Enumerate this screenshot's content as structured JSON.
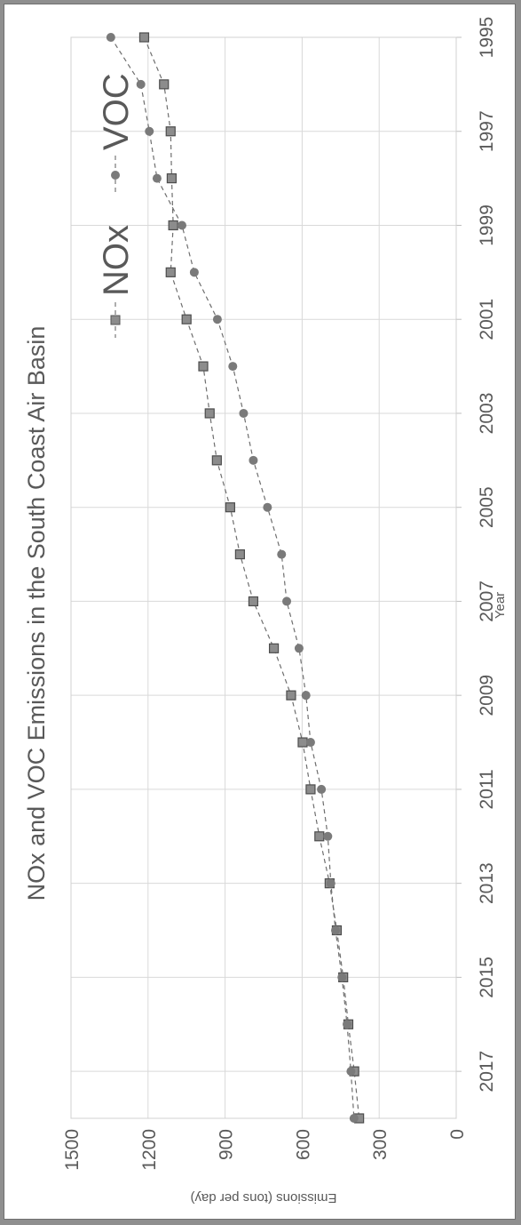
{
  "chart_data": {
    "type": "line",
    "title": "NOx and VOC Emissions in the South Coast Air Basin",
    "xlabel": "Year",
    "ylabel": "Emissions (tons per day)",
    "xlim": [
      1995,
      2018
    ],
    "ylim": [
      0,
      1500
    ],
    "x_ticks": [
      1995,
      1997,
      1999,
      2001,
      2003,
      2005,
      2007,
      2009,
      2011,
      2013,
      2015,
      2017
    ],
    "y_ticks": [
      0,
      300,
      600,
      900,
      1200,
      1500
    ],
    "grid": true,
    "legend_position": "top-right",
    "orientation": "rotated 90 degrees clockwise",
    "x": [
      1995,
      1996,
      1997,
      1998,
      1999,
      2000,
      2001,
      2002,
      2003,
      2004,
      2005,
      2006,
      2007,
      2008,
      2009,
      2010,
      2011,
      2012,
      2013,
      2014,
      2015,
      2016,
      2017,
      2018
    ],
    "series": [
      {
        "name": "NOx",
        "marker": "square",
        "color": "#8c8c8c",
        "values": [
          1215,
          1138,
          1112,
          1108,
          1102,
          1112,
          1050,
          985,
          960,
          932,
          880,
          842,
          790,
          710,
          643,
          598,
          567,
          533,
          493,
          465,
          440,
          420,
          397,
          378
        ]
      },
      {
        "name": "VOC",
        "marker": "circle",
        "color": "#7a7a7a",
        "values": [
          1345,
          1228,
          1195,
          1165,
          1068,
          1020,
          930,
          870,
          828,
          790,
          735,
          680,
          660,
          612,
          585,
          567,
          525,
          500,
          488,
          470,
          445,
          425,
          410,
          398
        ]
      }
    ]
  }
}
